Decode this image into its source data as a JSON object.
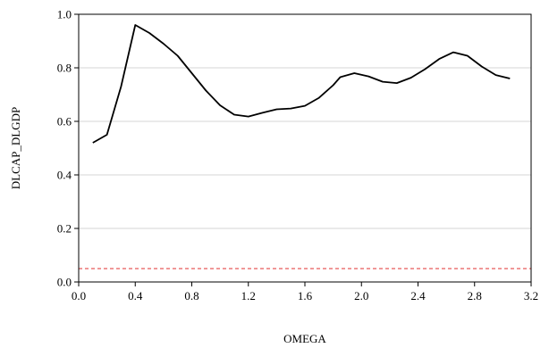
{
  "chart_data": {
    "type": "line",
    "xlabel": "OMEGA",
    "ylabel": "DLCAP_DLGDP",
    "xlim": [
      0.0,
      3.2
    ],
    "ylim": [
      0.0,
      1.0
    ],
    "xticks": [
      0.0,
      0.4,
      0.8,
      1.2,
      1.6,
      2.0,
      2.4,
      2.8,
      3.2
    ],
    "xtick_labels": [
      "0.0",
      "0.4",
      "0.8",
      "1.2",
      "1.6",
      "2.0",
      "2.4",
      "2.8",
      "3.2"
    ],
    "yticks": [
      0.0,
      0.2,
      0.4,
      0.6,
      0.8,
      1.0
    ],
    "ytick_labels": [
      "0.0",
      "0.2",
      "0.4",
      "0.6",
      "0.8",
      "1.0"
    ],
    "grid": "horizontal",
    "series": [
      {
        "color": "#000000",
        "x": [
          0.1,
          0.2,
          0.3,
          0.4,
          0.5,
          0.6,
          0.7,
          0.8,
          0.9,
          1.0,
          1.1,
          1.2,
          1.3,
          1.4,
          1.5,
          1.6,
          1.7,
          1.8,
          1.85,
          1.95,
          2.05,
          2.15,
          2.25,
          2.35,
          2.45,
          2.55,
          2.65,
          2.75,
          2.85,
          2.95,
          3.05
        ],
        "y": [
          0.52,
          0.55,
          0.73,
          0.96,
          0.93,
          0.89,
          0.845,
          0.78,
          0.715,
          0.66,
          0.625,
          0.618,
          0.632,
          0.645,
          0.648,
          0.658,
          0.688,
          0.735,
          0.765,
          0.78,
          0.768,
          0.748,
          0.743,
          0.763,
          0.795,
          0.833,
          0.858,
          0.845,
          0.805,
          0.773,
          0.76
        ]
      }
    ],
    "reference_lines": [
      {
        "orientation": "horizontal",
        "y": 0.05,
        "color": "#e03030",
        "style": "dashed"
      }
    ]
  }
}
